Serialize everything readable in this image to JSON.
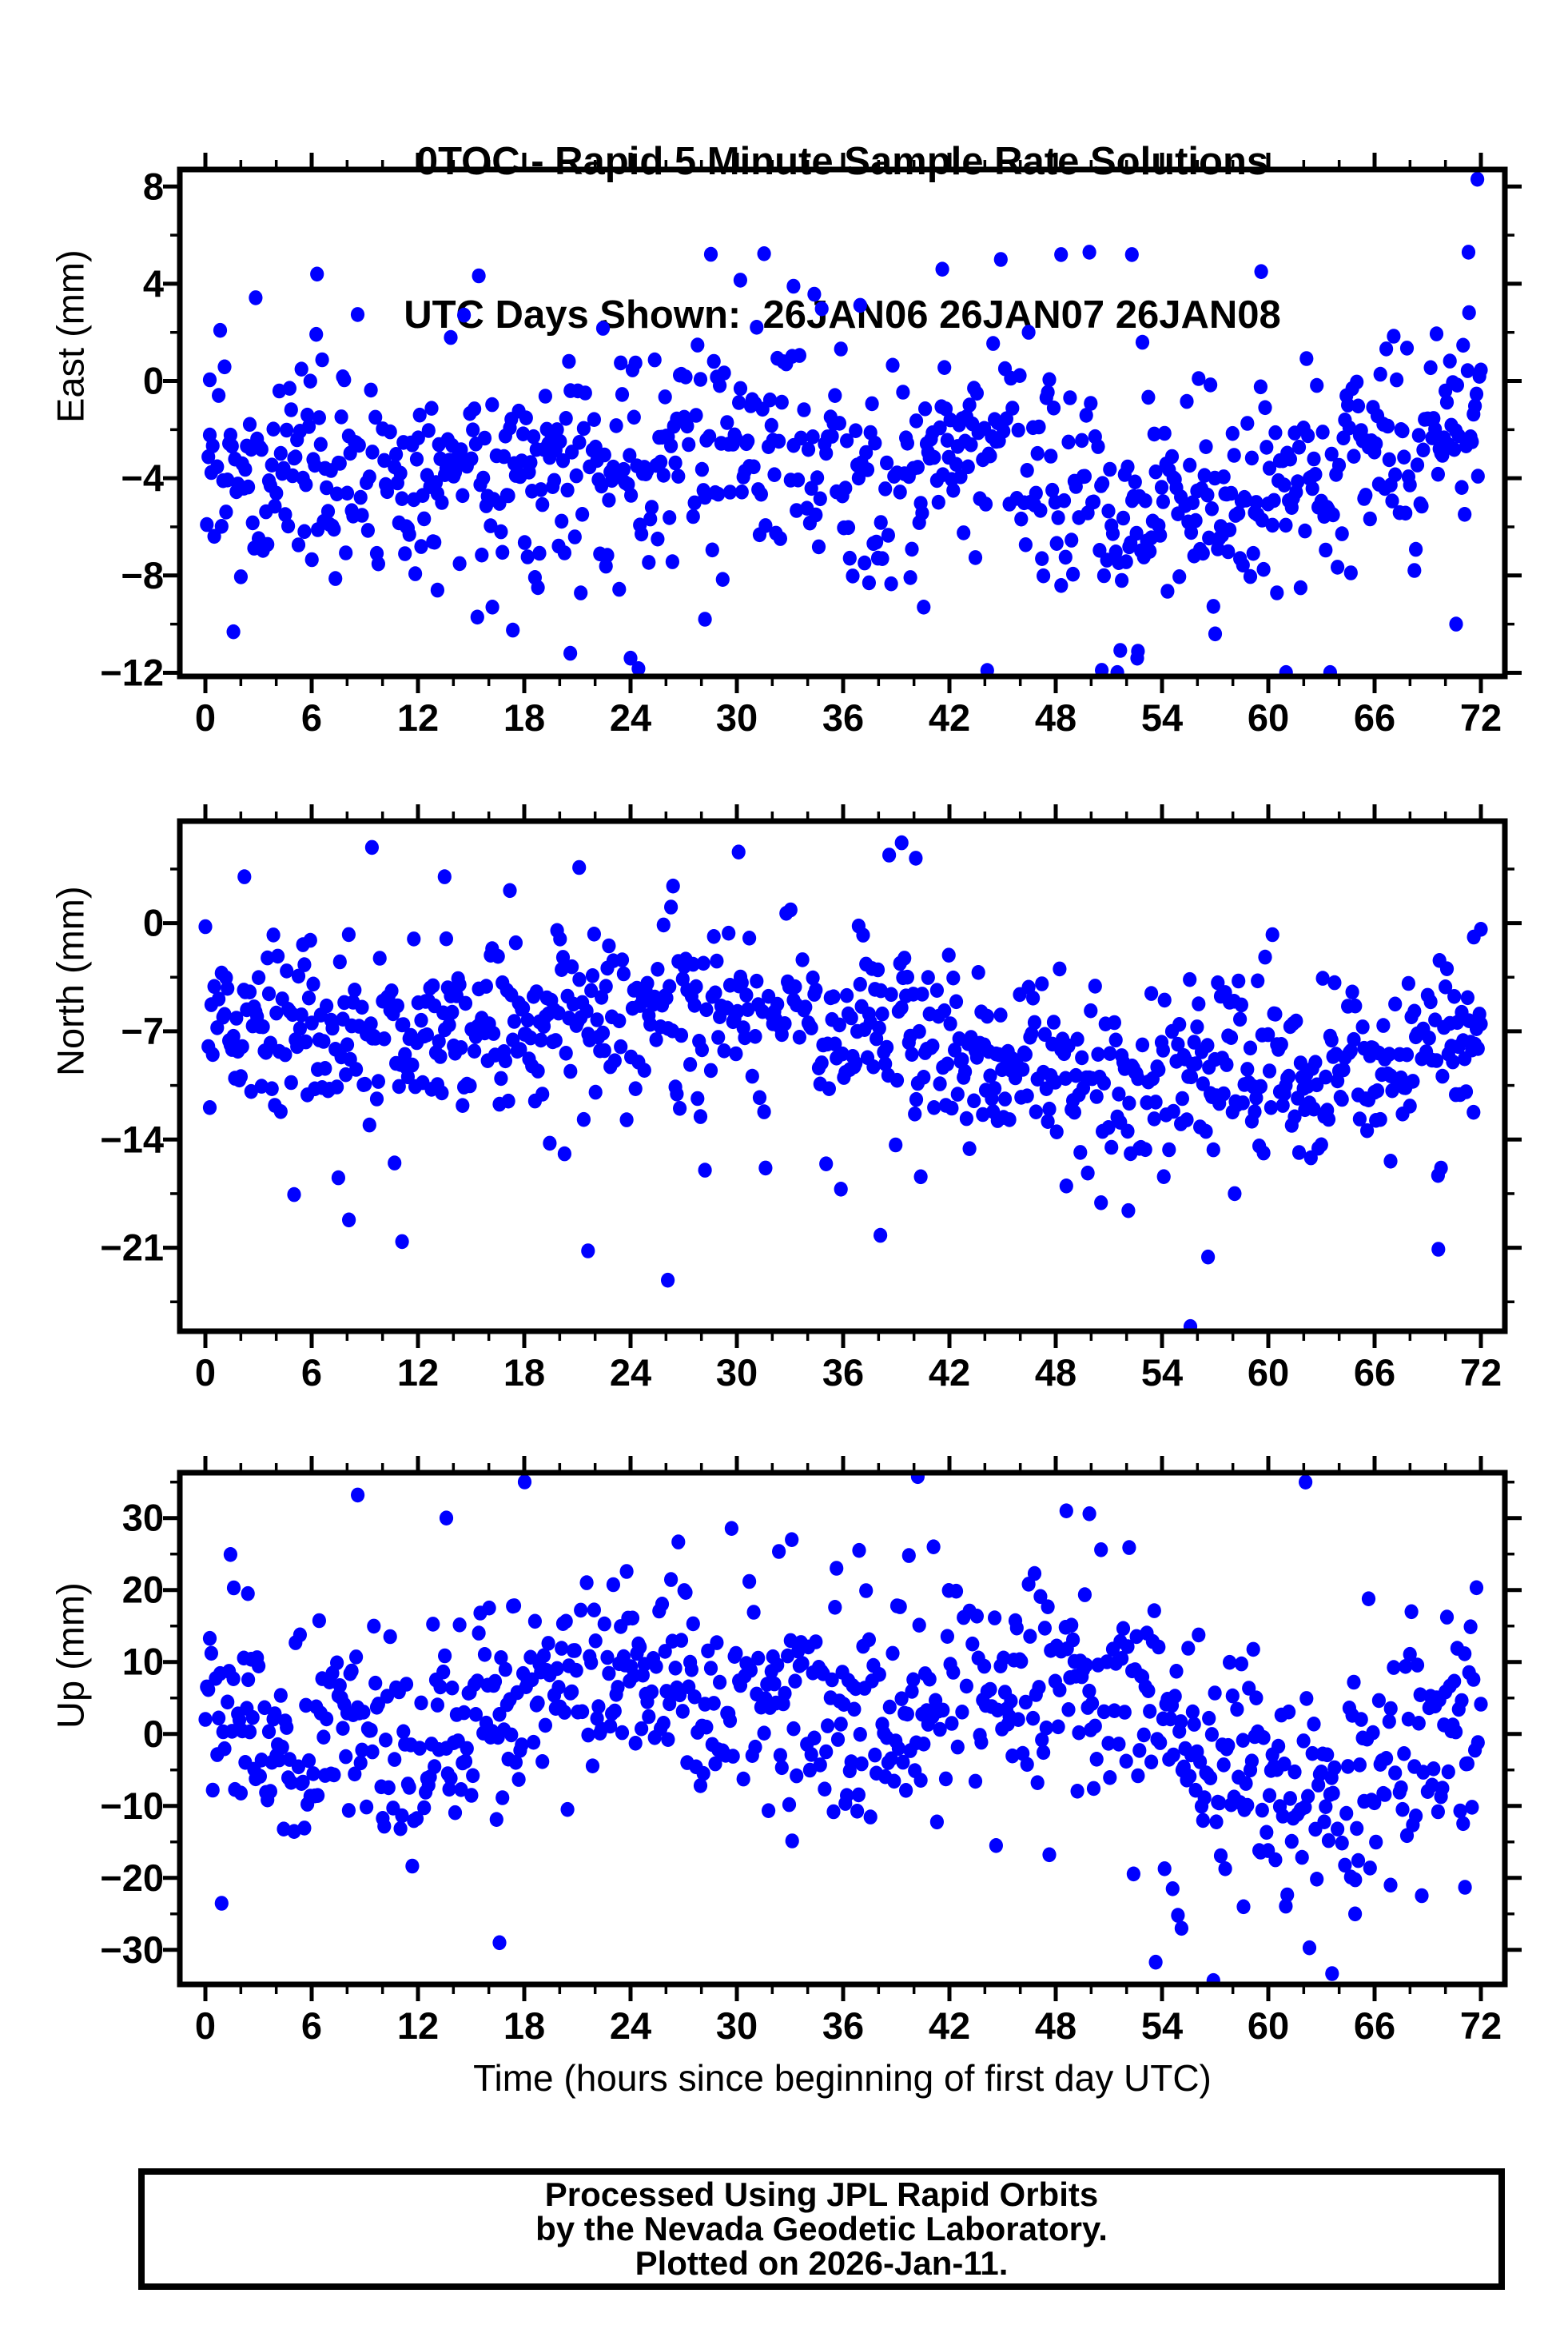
{
  "station": "0TOC",
  "title": {
    "line1": "0TOC - Rapid 5 Minute Sample Rate Solutions",
    "line2": "UTC Days Shown:  26JAN06 26JAN07 26JAN08"
  },
  "utc_days_shown": [
    "26JAN06",
    "26JAN07",
    "26JAN08"
  ],
  "x_axis_title": "Time (hours since beginning of first day UTC)",
  "footer": {
    "line1": "Processed Using JPL Rapid Orbits",
    "line2": "by the Nevada Geodetic Laboratory.",
    "line3": "Plotted on 2026-Jan-11."
  },
  "marker_color": "#0000ff",
  "chart_data": [
    {
      "type": "scatter",
      "name": "east",
      "ylabel": "East (mm)",
      "xlim": [
        -1.45,
        73.35
      ],
      "ylim": [
        -12.15,
        8.7
      ],
      "grid": false,
      "legend": "none",
      "sample_interval_minutes": 5,
      "n_points_estimate": 800,
      "x_major_ticks": [
        0,
        6,
        12,
        18,
        24,
        30,
        36,
        42,
        48,
        54,
        60,
        66,
        72
      ],
      "x_tick_labels": [
        "0",
        "6",
        "12",
        "18",
        "24",
        "30",
        "36",
        "42",
        "48",
        "54",
        "60",
        "66",
        "72"
      ],
      "x_minor_step": 2,
      "y_major_ticks": [
        8,
        4,
        0,
        -4,
        -8,
        -12
      ],
      "y_tick_labels": [
        "8",
        "4",
        "0",
        "−4",
        "−8",
        "−12"
      ],
      "y_minor_positions": [
        6,
        2,
        -2,
        -6,
        -10
      ],
      "points_spec": {
        "seed": 7,
        "n_samples": 864,
        "t_start": 0,
        "t_end": 72,
        "drop_rate": 0.1,
        "sigma": 2.2,
        "tail_rate": 0.05,
        "tail_scale": 2.0,
        "mean_curve": [
          [
            0,
            -3.0
          ],
          [
            4,
            -3.7
          ],
          [
            8,
            -3.8
          ],
          [
            12,
            -3.7
          ],
          [
            16,
            -3.7
          ],
          [
            20,
            -3.9
          ],
          [
            24,
            -3.4
          ],
          [
            28,
            -2.7
          ],
          [
            31,
            -1.9
          ],
          [
            34,
            -2.6
          ],
          [
            38,
            -3.2
          ],
          [
            42,
            -2.9
          ],
          [
            45,
            -2.6
          ],
          [
            47,
            -3.6
          ],
          [
            50,
            -4.8
          ],
          [
            53,
            -5.2
          ],
          [
            56,
            -4.7
          ],
          [
            59,
            -4.1
          ],
          [
            62,
            -4.5
          ],
          [
            65,
            -4.1
          ],
          [
            68,
            -3.1
          ],
          [
            70,
            -2.1
          ],
          [
            72,
            -0.9
          ]
        ]
      },
      "outlier_points": [
        [
          0.25,
          0.05
        ],
        [
          6.3,
          4.4
        ],
        [
          30.2,
          4.15
        ],
        [
          33.2,
          3.9
        ],
        [
          41.6,
          4.6
        ],
        [
          44.9,
          5.0
        ],
        [
          48.3,
          5.2
        ],
        [
          49.9,
          5.3
        ],
        [
          52.3,
          5.2
        ],
        [
          59.6,
          4.5
        ],
        [
          71.3,
          5.3
        ],
        [
          71.8,
          8.3
        ],
        [
          20.6,
          -11.2
        ],
        [
          24.0,
          -11.4
        ],
        [
          28.2,
          -9.8
        ],
        [
          50.6,
          -11.9
        ],
        [
          52.6,
          -11.4
        ],
        [
          57.0,
          -10.4
        ],
        [
          61.0,
          -12.0
        ],
        [
          70.6,
          -10.0
        ],
        [
          16.2,
          -9.3
        ],
        [
          13.1,
          -8.6
        ]
      ]
    },
    {
      "type": "scatter",
      "name": "north",
      "ylabel": "North (mm)",
      "xlim": [
        -1.45,
        73.35
      ],
      "ylim": [
        -26.4,
        6.6
      ],
      "grid": false,
      "legend": "none",
      "sample_interval_minutes": 5,
      "n_points_estimate": 800,
      "x_major_ticks": [
        0,
        6,
        12,
        18,
        24,
        30,
        36,
        42,
        48,
        54,
        60,
        66,
        72
      ],
      "x_tick_labels": [
        "0",
        "6",
        "12",
        "18",
        "24",
        "30",
        "36",
        "42",
        "48",
        "54",
        "60",
        "66",
        "72"
      ],
      "x_minor_step": 2,
      "y_major_ticks": [
        0,
        -7,
        -14,
        -21
      ],
      "y_tick_labels": [
        "0",
        "−7",
        "−14",
        "−21"
      ],
      "y_minor_positions": [
        3.5,
        -3.5,
        -10.5,
        -17.5,
        -24.5
      ],
      "points_spec": {
        "seed": 13,
        "n_samples": 864,
        "t_start": 0,
        "t_end": 72,
        "drop_rate": 0.1,
        "sigma": 2.7,
        "tail_rate": 0.06,
        "tail_scale": 2.0,
        "mean_curve": [
          [
            0,
            -7.2
          ],
          [
            4,
            -7.0
          ],
          [
            8,
            -6.6
          ],
          [
            12,
            -6.7
          ],
          [
            16,
            -6.2
          ],
          [
            20,
            -6.7
          ],
          [
            24,
            -6.2
          ],
          [
            27,
            -5.6
          ],
          [
            30,
            -5.4
          ],
          [
            33,
            -6.2
          ],
          [
            36,
            -6.6
          ],
          [
            38,
            -5.8
          ],
          [
            40,
            -6.6
          ],
          [
            42,
            -8.2
          ],
          [
            45,
            -8.8
          ],
          [
            48,
            -9.2
          ],
          [
            51,
            -10.6
          ],
          [
            54,
            -10.2
          ],
          [
            57,
            -9.2
          ],
          [
            60,
            -9.6
          ],
          [
            63,
            -9.0
          ],
          [
            66,
            -9.4
          ],
          [
            69,
            -8.4
          ],
          [
            72,
            -7.0
          ]
        ]
      },
      "outlier_points": [
        [
          2.2,
          3.0
        ],
        [
          9.4,
          4.9
        ],
        [
          13.5,
          3.0
        ],
        [
          21.1,
          3.6
        ],
        [
          26.4,
          2.4
        ],
        [
          30.1,
          4.6
        ],
        [
          38.6,
          4.4
        ],
        [
          39.3,
          5.2
        ],
        [
          40.1,
          4.2
        ],
        [
          55.6,
          -26.1
        ],
        [
          56.6,
          -21.6
        ],
        [
          21.6,
          -21.2
        ],
        [
          26.1,
          -23.1
        ],
        [
          11.1,
          -20.6
        ],
        [
          8.1,
          -19.2
        ],
        [
          69.6,
          -21.1
        ],
        [
          38.1,
          -20.2
        ],
        [
          52.1,
          -18.6
        ],
        [
          58.1,
          -17.5
        ],
        [
          48.6,
          -17.0
        ],
        [
          54.1,
          -16.4
        ],
        [
          66.9,
          -15.4
        ],
        [
          71.6,
          -0.9
        ],
        [
          72.0,
          -0.4
        ]
      ]
    },
    {
      "type": "scatter",
      "name": "up",
      "ylabel": "Up (mm)",
      "xlim": [
        -1.45,
        73.35
      ],
      "ylim": [
        -34.8,
        36.3
      ],
      "grid": false,
      "legend": "none",
      "sample_interval_minutes": 5,
      "n_points_estimate": 800,
      "x_major_ticks": [
        0,
        6,
        12,
        18,
        24,
        30,
        36,
        42,
        48,
        54,
        60,
        66,
        72
      ],
      "x_tick_labels": [
        "0",
        "6",
        "12",
        "18",
        "24",
        "30",
        "36",
        "42",
        "48",
        "54",
        "60",
        "66",
        "72"
      ],
      "x_minor_step": 2,
      "y_major_ticks": [
        30,
        20,
        10,
        0,
        -10,
        -20,
        -30
      ],
      "y_tick_labels": [
        "30",
        "20",
        "10",
        "0",
        "−10",
        "−20",
        "−30"
      ],
      "y_minor_positions": [
        35,
        25,
        15,
        5,
        -5,
        -15,
        -25
      ],
      "points_spec": {
        "seed": 21,
        "n_samples": 864,
        "t_start": 0,
        "t_end": 72,
        "drop_rate": 0.1,
        "sigma": 7.5,
        "tail_rate": 0.06,
        "tail_scale": 1.9,
        "mean_curve": [
          [
            0,
            4
          ],
          [
            2,
            6
          ],
          [
            4,
            1
          ],
          [
            6,
            -1
          ],
          [
            8,
            2
          ],
          [
            10,
            1
          ],
          [
            12,
            -2
          ],
          [
            14,
            1
          ],
          [
            16,
            2
          ],
          [
            18,
            6
          ],
          [
            20,
            8
          ],
          [
            22,
            9
          ],
          [
            24,
            8
          ],
          [
            26,
            6
          ],
          [
            28,
            3
          ],
          [
            30,
            4
          ],
          [
            32,
            6
          ],
          [
            34,
            5
          ],
          [
            36,
            3
          ],
          [
            38,
            1
          ],
          [
            40,
            4
          ],
          [
            42,
            7
          ],
          [
            44,
            7
          ],
          [
            46,
            6
          ],
          [
            48,
            9
          ],
          [
            50,
            7
          ],
          [
            52,
            3
          ],
          [
            54,
            0
          ],
          [
            56,
            -3
          ],
          [
            58,
            -5
          ],
          [
            60,
            -7
          ],
          [
            62,
            -6
          ],
          [
            64,
            -8
          ],
          [
            66,
            -6
          ],
          [
            68,
            -2
          ],
          [
            70,
            2
          ],
          [
            72,
            4
          ]
        ]
      },
      "outlier_points": [
        [
          8.6,
          33.2
        ],
        [
          62.1,
          35.0
        ],
        [
          48.6,
          31.0
        ],
        [
          49.9,
          30.6
        ],
        [
          13.6,
          30.0
        ],
        [
          16.6,
          -29.0
        ],
        [
          63.6,
          -33.3
        ],
        [
          55.1,
          -27.0
        ],
        [
          54.6,
          -21.5
        ],
        [
          36.9,
          25.5
        ],
        [
          41.1,
          26.0
        ],
        [
          1.6,
          20.3
        ],
        [
          2.4,
          19.5
        ],
        [
          33.1,
          27.0
        ],
        [
          64.9,
          -25.0
        ],
        [
          58.6,
          -24.0
        ],
        [
          71.1,
          -21.3
        ],
        [
          66.9,
          -21.0
        ]
      ]
    }
  ]
}
